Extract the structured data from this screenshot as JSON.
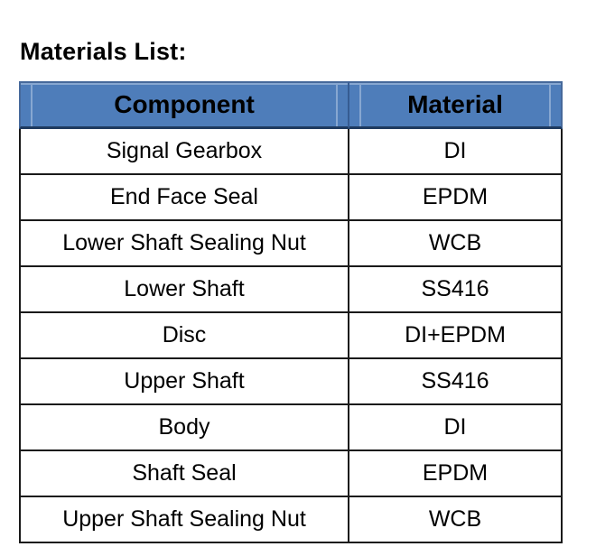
{
  "page": {
    "title": "Materials List:"
  },
  "table": {
    "columns": [
      "Component",
      "Material"
    ],
    "rows": [
      {
        "component": "Signal Gearbox",
        "material": "DI"
      },
      {
        "component": "End Face Seal",
        "material": "EPDM"
      },
      {
        "component": "Lower Shaft Sealing Nut",
        "material": "WCB"
      },
      {
        "component": "Lower Shaft",
        "material": "SS416"
      },
      {
        "component": "Disc",
        "material": "DI+EPDM"
      },
      {
        "component": "Upper Shaft",
        "material": "SS416"
      },
      {
        "component": "Body",
        "material": "DI"
      },
      {
        "component": "Shaft Seal",
        "material": "EPDM"
      },
      {
        "component": "Upper Shaft Sealing Nut",
        "material": "WCB"
      }
    ],
    "colors": {
      "header_background": "#4E7DBA",
      "header_highlight": "#87A7D1",
      "header_border_dark": "#1E3A5F",
      "body_border": "#1A1A1A",
      "text": "#000000"
    }
  }
}
